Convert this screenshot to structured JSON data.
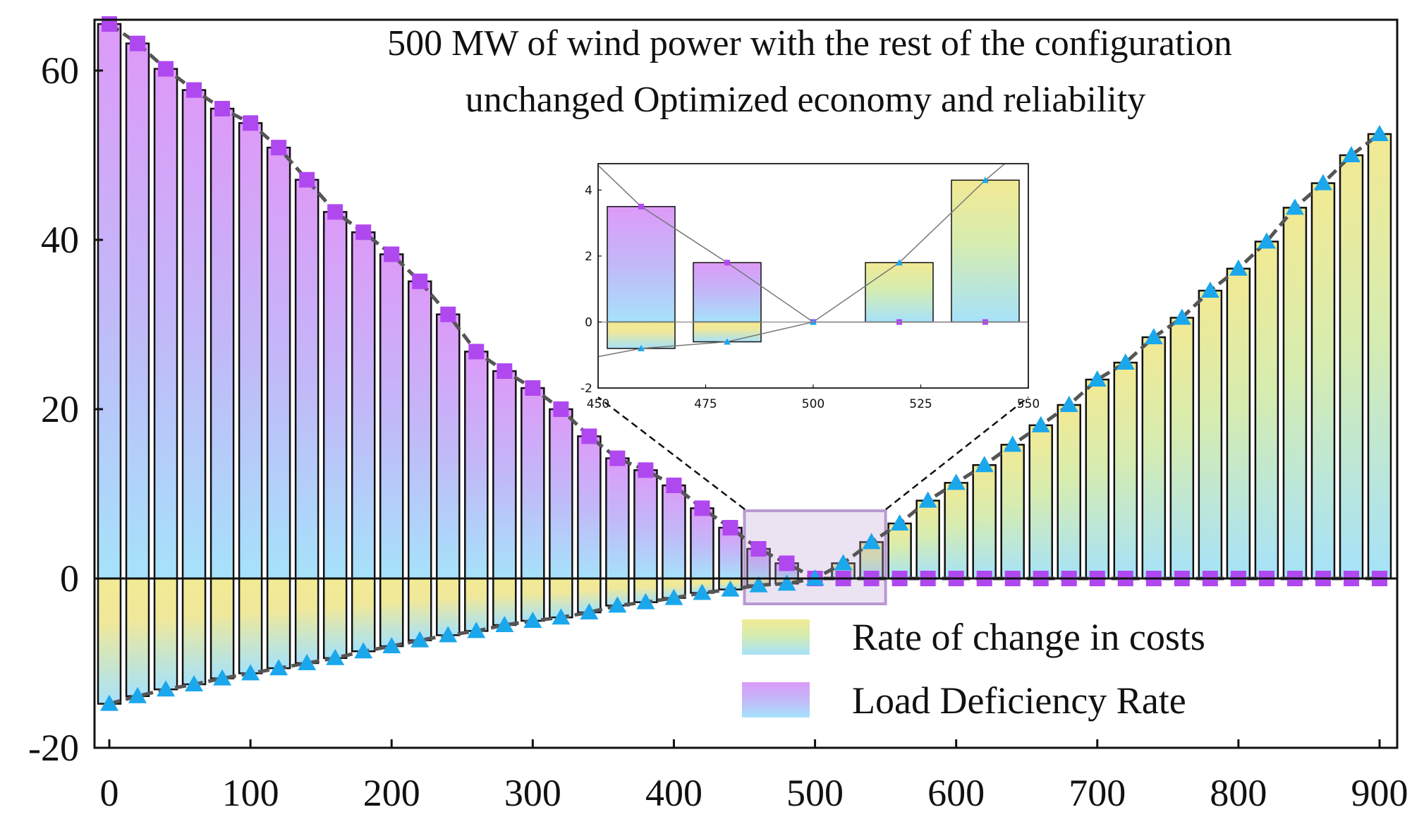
{
  "chart_data": {
    "type": "bar",
    "title_lines": [
      "500 MW of wind power with the rest of the configuration",
      "unchanged Optimized economy and reliability"
    ],
    "xlabel": "",
    "ylabel": "",
    "xlim": [
      -10,
      910
    ],
    "ylim": [
      -20,
      66
    ],
    "x_ticks": [
      0,
      100,
      200,
      300,
      400,
      500,
      600,
      700,
      800,
      900
    ],
    "y_ticks": [
      -20,
      0,
      20,
      40,
      60
    ],
    "x_tick_labels": [
      "0",
      "100",
      "200",
      "300",
      "400",
      "500",
      "600",
      "700",
      "800",
      "900"
    ],
    "y_tick_labels": [
      "-20",
      "0",
      "20",
      "40",
      "60"
    ],
    "legend": [
      {
        "label": "Rate of change in costs",
        "gradient_top": "#f2ea94",
        "gradient_bottom": "#a6e2fa"
      },
      {
        "label": "Load Deficiency Rate",
        "gradient_top": "#d896f8",
        "gradient_bottom": "#a6e2fa"
      }
    ],
    "legend_position": "bottom-right",
    "colors": {
      "cost_marker": "#1aa7ec",
      "deficiency_marker": "#b048f0",
      "line": "#555555",
      "zoom_box": "#b89ad2"
    },
    "x": [
      0,
      20,
      40,
      60,
      80,
      100,
      120,
      140,
      160,
      180,
      200,
      220,
      240,
      260,
      280,
      300,
      320,
      340,
      360,
      380,
      400,
      420,
      440,
      460,
      480,
      500,
      520,
      540,
      560,
      580,
      600,
      620,
      640,
      660,
      680,
      700,
      720,
      740,
      760,
      780,
      800,
      820,
      840,
      860,
      880,
      900
    ],
    "series": [
      {
        "name": "Load Deficiency Rate",
        "values": [
          65.5,
          63.2,
          60.2,
          57.7,
          55.5,
          53.8,
          50.9,
          47.1,
          43.3,
          40.9,
          38.3,
          35.1,
          31.2,
          26.8,
          24.5,
          22.5,
          20.0,
          16.8,
          14.2,
          12.8,
          11.0,
          8.3,
          6.0,
          3.5,
          1.8,
          0.0,
          0,
          0,
          0,
          0,
          0,
          0,
          0,
          0,
          0,
          0,
          0,
          0,
          0,
          0,
          0,
          0,
          0,
          0,
          0,
          0
        ]
      },
      {
        "name": "Rate of change in costs",
        "values": [
          -14.8,
          -13.9,
          -13.1,
          -12.5,
          -11.8,
          -11.2,
          -10.6,
          -10.0,
          -9.4,
          -8.6,
          -8.0,
          -7.3,
          -6.7,
          -6.2,
          -5.5,
          -5.0,
          -4.6,
          -4.0,
          -3.2,
          -2.8,
          -2.3,
          -1.7,
          -1.3,
          -0.8,
          -0.6,
          0.0,
          1.8,
          4.3,
          6.5,
          9.2,
          11.3,
          13.4,
          15.8,
          18.1,
          20.5,
          23.5,
          25.5,
          28.5,
          30.8,
          34.0,
          36.6,
          39.8,
          43.8,
          46.7,
          50.0,
          52.5
        ]
      }
    ],
    "zoom_range": {
      "x": [
        450,
        550
      ],
      "y": [
        -3,
        8
      ]
    },
    "inset": {
      "xlim": [
        450,
        550
      ],
      "ylim": [
        -2,
        4.8
      ],
      "x_ticks": [
        450,
        475,
        500,
        525,
        550
      ],
      "y_ticks": [
        -2,
        0,
        2,
        4
      ],
      "x_tick_labels": [
        "450",
        "475",
        "500",
        "525",
        "550"
      ],
      "y_tick_labels": [
        "-2",
        "0",
        "2",
        "4"
      ]
    }
  }
}
